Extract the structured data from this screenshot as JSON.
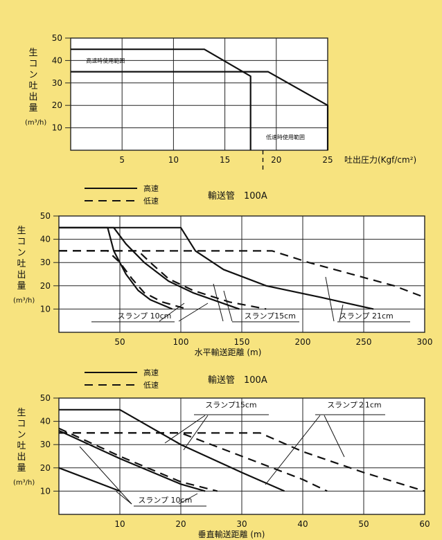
{
  "colors": {
    "page_bg": "#f7e37f",
    "plot_bg": "#ffffff",
    "grid": "#222222",
    "line": "#111111"
  },
  "chart_data": [
    {
      "type": "line",
      "ylabel": "生コン吐出量",
      "yunit": "(m³/h)",
      "xlabel": "吐出圧力(Kgf/cm²)",
      "xlim": [
        0,
        25
      ],
      "ylim": [
        0,
        50
      ],
      "xticks": [
        "5",
        "10",
        "15",
        "20",
        "25"
      ],
      "yticks": [
        "10",
        "20",
        "30",
        "40",
        "50"
      ],
      "grid": true,
      "series": [
        {
          "name": "高速時使用範囲",
          "style": "solid",
          "x": [
            0,
            13,
            17.5,
            17.5
          ],
          "y": [
            45,
            45,
            33,
            0
          ]
        },
        {
          "name": "低速時使用範囲",
          "style": "solid",
          "x": [
            0,
            19.2,
            25,
            25
          ],
          "y": [
            35,
            35,
            20,
            0
          ]
        }
      ],
      "annotations": [
        {
          "text": "高速時使用範囲",
          "x": 1.5,
          "y": 39
        },
        {
          "text": "低速時使用範囲",
          "x": 19,
          "y": 5
        }
      ]
    },
    {
      "type": "line",
      "title": "輸送管　100A",
      "legend": [
        {
          "label": "高速",
          "style": "solid"
        },
        {
          "label": "低速",
          "style": "dashed"
        }
      ],
      "ylabel": "生コン吐出量",
      "yunit": "(m³/h)",
      "xlabel": "水平輸送距離 (m)",
      "xlim": [
        0,
        300
      ],
      "ylim": [
        0,
        50
      ],
      "xticks": [
        "50",
        "100",
        "150",
        "200",
        "250",
        "300"
      ],
      "yticks": [
        "10",
        "20",
        "30",
        "40",
        "50"
      ],
      "grid": true,
      "series": [
        {
          "slump": "10cm",
          "style": "solid",
          "x": [
            0,
            40,
            45,
            55,
            65,
            75,
            93
          ],
          "y": [
            45,
            45,
            35,
            25,
            18,
            14,
            10
          ]
        },
        {
          "slump": "10cm",
          "style": "dashed",
          "x": [
            0,
            40,
            50,
            60,
            70,
            85,
            105
          ],
          "y": [
            35,
            35,
            30,
            23,
            17,
            13,
            10
          ]
        },
        {
          "slump": "15cm",
          "style": "solid",
          "x": [
            0,
            45,
            55,
            70,
            90,
            110,
            148
          ],
          "y": [
            45,
            45,
            38,
            30,
            22,
            17,
            10
          ]
        },
        {
          "slump": "15cm",
          "style": "dashed",
          "x": [
            0,
            65,
            75,
            90,
            110,
            140,
            170
          ],
          "y": [
            35,
            35,
            30,
            23,
            18,
            13,
            10
          ]
        },
        {
          "slump": "21cm",
          "style": "solid",
          "x": [
            0,
            100,
            112,
            135,
            170,
            215,
            258
          ],
          "y": [
            45,
            45,
            35,
            27,
            20,
            15,
            10
          ]
        },
        {
          "slump": "21cm",
          "style": "dashed",
          "x": [
            0,
            175,
            205,
            240,
            275,
            300
          ],
          "y": [
            35,
            35,
            30,
            25,
            20,
            15
          ]
        }
      ],
      "annotations": [
        {
          "text": "スランプ 10cm",
          "x": 48,
          "y": 6
        },
        {
          "text": "スランプ15cm",
          "x": 152,
          "y": 6
        },
        {
          "text": "スランプ 21cm",
          "x": 230,
          "y": 6
        }
      ]
    },
    {
      "type": "line",
      "title": "輸送管　100A",
      "legend": [
        {
          "label": "高速",
          "style": "solid"
        },
        {
          "label": "低速",
          "style": "dashed"
        }
      ],
      "ylabel": "生コン吐出量",
      "yunit": "(m³/h)",
      "xlabel": "垂直輸送距離 (m)",
      "xlim": [
        0,
        60
      ],
      "ylim": [
        0,
        50
      ],
      "xticks": [
        "10",
        "20",
        "30",
        "40",
        "50",
        "60"
      ],
      "yticks": [
        "10",
        "20",
        "30",
        "40",
        "50"
      ],
      "grid": true,
      "series": [
        {
          "slump": "10cm",
          "style": "solid",
          "x": [
            0,
            10
          ],
          "y": [
            20,
            10
          ]
        },
        {
          "slump": "10cm",
          "style": "solid",
          "x": [
            0,
            10,
            20,
            24
          ],
          "y": [
            36,
            24,
            13,
            10
          ]
        },
        {
          "slump": "10cm",
          "style": "dashed",
          "x": [
            0,
            10,
            20,
            26
          ],
          "y": [
            37,
            25,
            14,
            10
          ]
        },
        {
          "slump": "15cm",
          "style": "solid",
          "x": [
            0,
            10,
            20,
            30,
            37
          ],
          "y": [
            45,
            45,
            30,
            18,
            10
          ]
        },
        {
          "slump": "15cm",
          "style": "dashed",
          "x": [
            0,
            20,
            30,
            40,
            44
          ],
          "y": [
            35,
            35,
            25,
            15,
            10
          ]
        },
        {
          "slump": "21cm",
          "style": "dashed",
          "x": [
            0,
            33,
            40,
            50,
            60
          ],
          "y": [
            35,
            35,
            27,
            18,
            10
          ]
        }
      ],
      "annotations": [
        {
          "text": "スランプ15cm",
          "x": 24,
          "y": 46
        },
        {
          "text": "スランプ２1cm",
          "x": 44,
          "y": 46
        },
        {
          "text": "スランプ 10cm",
          "x": 13,
          "y": 5
        }
      ]
    }
  ]
}
